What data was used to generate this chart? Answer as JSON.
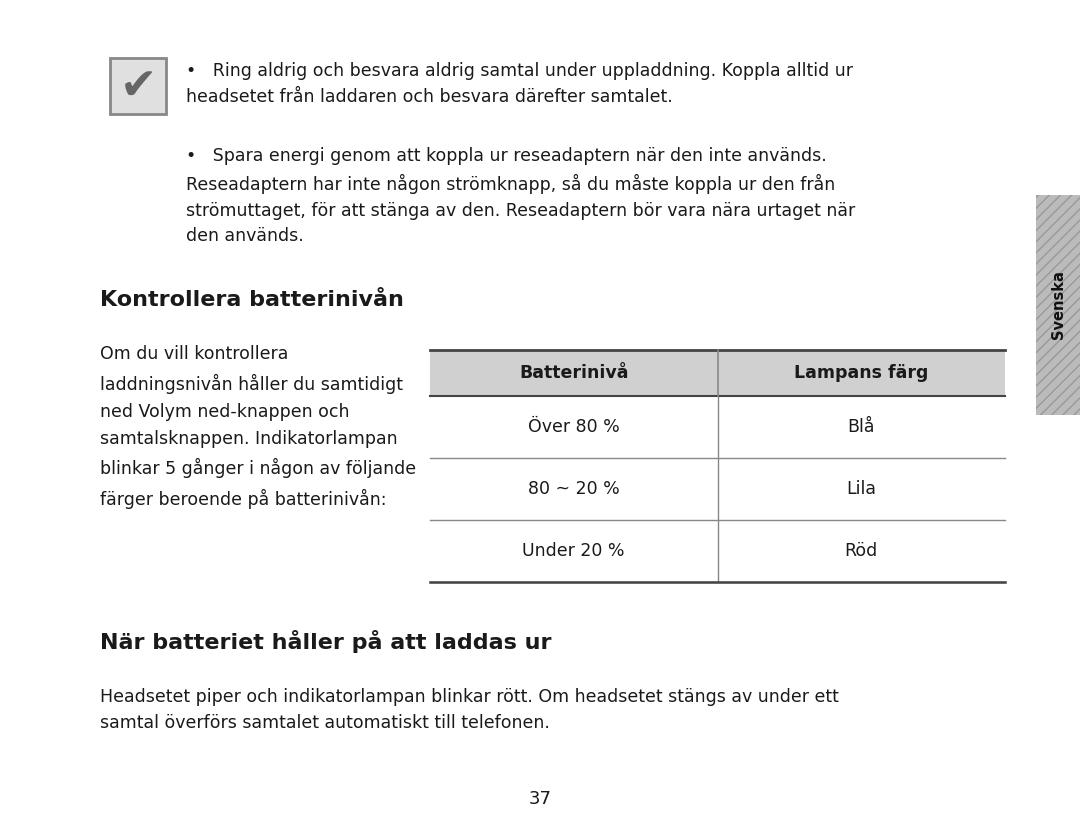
{
  "bg_color": "#ffffff",
  "page_number": "37",
  "sidebar_color": "#aaaaaa",
  "sidebar_hatch_color": "#cccccc",
  "sidebar_text": "Svenska",
  "header_bullets": [
    "Ring aldrig och besvara aldrig samtal under uppladdning. Koppla alltid ur\nheadsetet från laddaren och besvara därefter samtalet.",
    "Spara energi genom att koppla ur reseadaptern när den inte används.\nReseadaptern har inte någon strömknapp, så du måste koppla ur den från\nströmuttaget, för att stänga av den. Reseadaptern bör vara nära urtaget när\nden används."
  ],
  "section1_title": "Kontrollera batterinivån",
  "section1_left_text": "Om du vill kontrollera\nladdningsnivån håller du samtidigt\nned Volym ned-knappen och\nsamtalsknappen. Indikatorlampan\nblinkar 5 gånger i någon av följande\nfärger beroende på batterinivån:",
  "table_header": [
    "Batterinivå",
    "Lampans färg"
  ],
  "table_rows": [
    [
      "Över 80 %",
      "Blå"
    ],
    [
      "80 ~ 20 %",
      "Lila"
    ],
    [
      "Under 20 %",
      "Röd"
    ]
  ],
  "section2_title": "När batteriet håller på att laddas ur",
  "section2_text": "Headsetet piper och indikatorlampan blinkar rött. Om headsetet stängs av under ett\nsamtal överförs samtalet automatiskt till telefonen.",
  "text_color": "#1a1a1a",
  "table_header_bg": "#d0d0d0",
  "table_header_color": "#1a1a1a",
  "table_line_color": "#555555",
  "font_size_body": 12.5,
  "font_size_section": 15,
  "font_size_page": 13
}
